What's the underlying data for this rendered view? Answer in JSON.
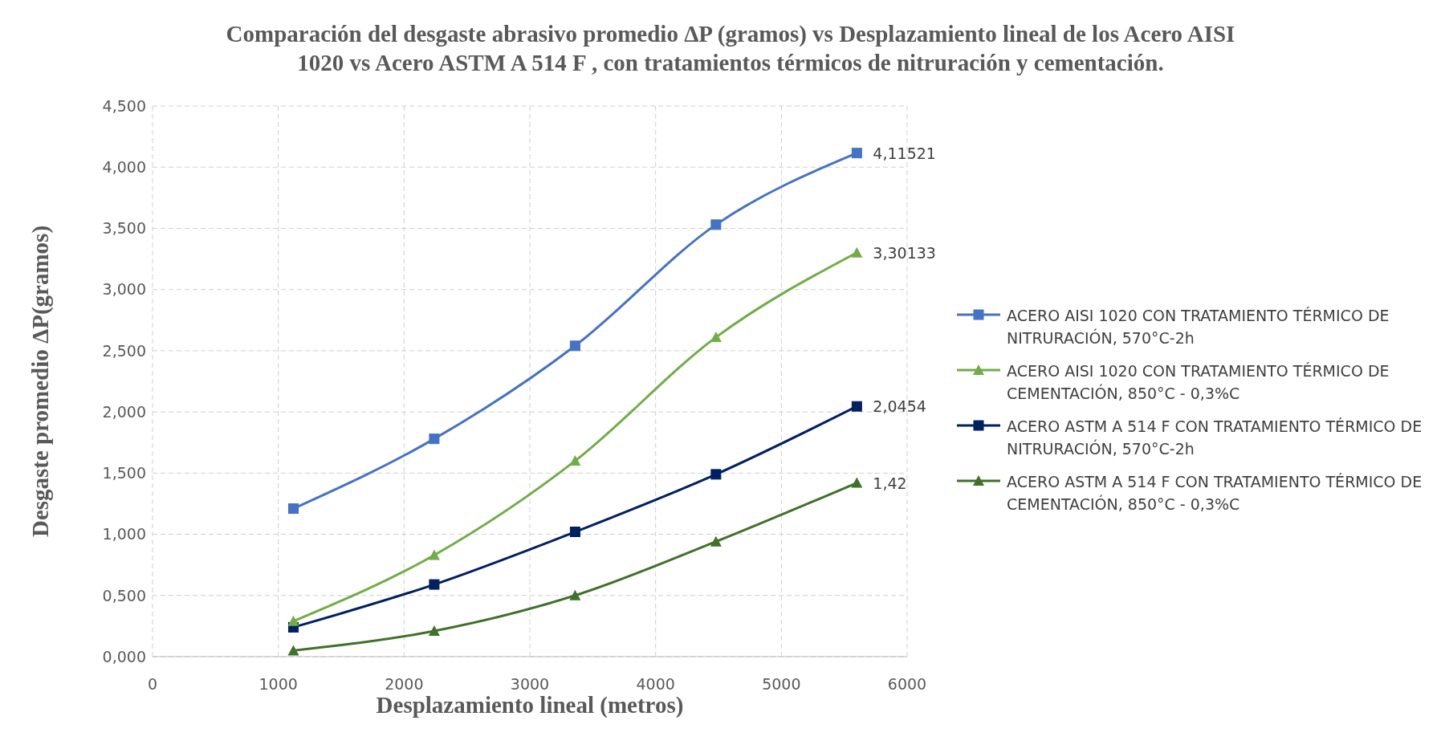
{
  "chart_data": {
    "type": "line",
    "title": "Comparación del desgaste abrasivo promedio ΔP (gramos) vs Desplazamiento lineal de los Acero AISI 1020 vs Acero ASTM A 514 F , con tratamientos térmicos de nitruración y cementación.",
    "xlabel": "Desplazamiento lineal (metros)",
    "ylabel": "Desgaste promedio ΔP(gramos)",
    "x": [
      1120,
      2240,
      3360,
      4480,
      5600
    ],
    "xlim": [
      0,
      6000
    ],
    "xticks": [
      0,
      1000,
      2000,
      3000,
      4000,
      5000,
      6000
    ],
    "ylim": [
      0,
      4.5
    ],
    "yticks": [
      {
        "value": 0,
        "label": "0,000"
      },
      {
        "value": 0.5,
        "label": "0,500"
      },
      {
        "value": 1,
        "label": "1,000"
      },
      {
        "value": 1.5,
        "label": "1,500"
      },
      {
        "value": 2,
        "label": "2,000"
      },
      {
        "value": 2.5,
        "label": "2,500"
      },
      {
        "value": 3,
        "label": "3,000"
      },
      {
        "value": 3.5,
        "label": "3,500"
      },
      {
        "value": 4,
        "label": "4,000"
      },
      {
        "value": 4.5,
        "label": "4,500"
      }
    ],
    "grid": true,
    "legend": "right",
    "series": [
      {
        "name": "ACERO AISI 1020  CON TRATAMIENTO TÉRMICO DE NITRURACIÓN, 570°C-2h",
        "color": "#4472c4",
        "marker": "square",
        "values": [
          1.21,
          1.78,
          2.54,
          3.53,
          4.11521
        ],
        "value_labels": [
          null,
          null,
          null,
          null,
          "4,11521"
        ]
      },
      {
        "name": "ACERO AISI 1020  CON TRATAMIENTO TÉRMICO DE CEMENTACIÓN, 850°C - 0,3%C",
        "color": "#70ad47",
        "marker": "triangle",
        "values": [
          0.29,
          0.83,
          1.6,
          2.61,
          3.30133
        ],
        "value_labels": [
          null,
          null,
          null,
          null,
          "3,30133"
        ]
      },
      {
        "name": "ACERO ASTM A 514 F  CON TRATAMIENTO TÉRMICO DE NITRURACIÓN, 570°C-2h",
        "color": "#002060",
        "marker": "square",
        "values": [
          0.24,
          0.59,
          1.02,
          1.49,
          2.0454
        ],
        "value_labels": [
          null,
          null,
          null,
          null,
          "2,0454"
        ]
      },
      {
        "name": "ACERO ASTM A 514 F  CON TRATAMIENTO TÉRMICO DE CEMENTACIÓN, 850°C - 0,3%C",
        "color": "#3f7128",
        "marker": "triangle",
        "values": [
          0.05,
          0.21,
          0.5,
          0.94,
          1.42
        ],
        "value_labels": [
          null,
          null,
          null,
          null,
          "1,42"
        ]
      }
    ]
  }
}
